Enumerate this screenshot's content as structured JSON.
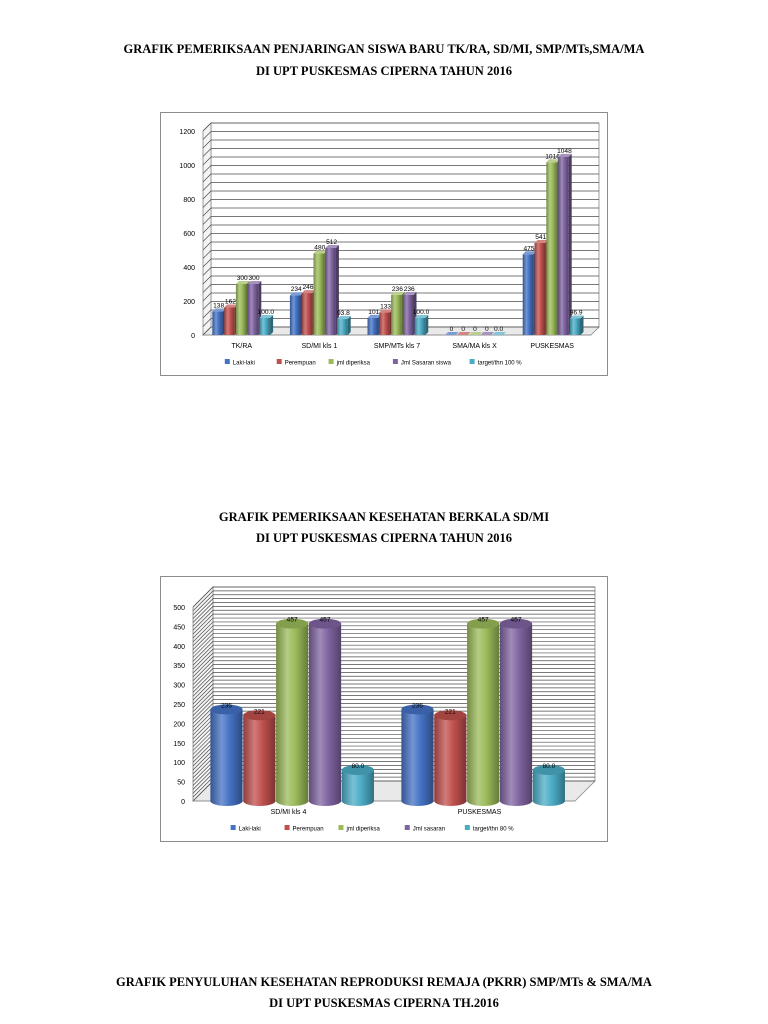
{
  "section1": {
    "title_line1": "GRAFIK PEMERIKSAAN PENJARINGAN SISWA BARU TK/RA, SD/MI, SMP/MTs,SMA/MA",
    "title_line2": "DI UPT PUSKESMAS CIPERNA TAHUN 2016"
  },
  "section2": {
    "title_line1": "GRAFIK PEMERIKSAAN KESEHATAN BERKALA SD/MI",
    "title_line2": "DI UPT PUSKESMAS CIPERNA TAHUN 2016"
  },
  "section3": {
    "title_line1": "GRAFIK PENYULUHAN KESEHATAN REPRODUKSI REMAJA (PKRR) SMP/MTs & SMA/MA",
    "title_line2": "DI UPT PUSKESMAS CIPERNA TH.2016"
  },
  "chart_data": [
    {
      "type": "bar",
      "style": "3d-clustered",
      "categories": [
        "TK/RA",
        "SD/MI kls 1",
        "SMP/MTs kls 7",
        "SMA/MA kls X",
        "PUSKESMAS"
      ],
      "series": [
        {
          "name": "Laki-laki",
          "color": "#4472C4",
          "values": [
            138,
            234,
            101,
            0,
            475
          ],
          "labels": [
            "138",
            "234",
            "101",
            "0",
            "475"
          ]
        },
        {
          "name": "Perempuan",
          "color": "#C0504D",
          "values": [
            162,
            246,
            133,
            0,
            541
          ],
          "labels": [
            "162",
            "246",
            "133",
            "0",
            "541"
          ]
        },
        {
          "name": "jml diperiksa",
          "color": "#9BBB59",
          "values": [
            300,
            480,
            236,
            0,
            1016
          ],
          "labels": [
            "300",
            "480",
            "236",
            "0",
            "1016"
          ]
        },
        {
          "name": "Jml Sasaran siswa",
          "color": "#8064A2",
          "values": [
            300,
            512,
            236,
            0,
            1048
          ],
          "labels": [
            "300",
            "512",
            "236",
            "0",
            "1048"
          ]
        },
        {
          "name": "target/thn 100 %",
          "color": "#4BACC6",
          "values": [
            100.0,
            93.8,
            100.0,
            0.0,
            96.9
          ],
          "labels": [
            "100.0",
            "93.8",
            "100.0",
            "0.0",
            "96.9"
          ]
        }
      ],
      "yticks": [
        0,
        200,
        400,
        600,
        800,
        1000,
        1200
      ],
      "ylim": [
        0,
        1200
      ],
      "grid": true,
      "legend": "bottom"
    },
    {
      "type": "bar",
      "style": "3d-cylinder",
      "categories": [
        "SD/MI kls 4",
        "PUSKESMAS"
      ],
      "series": [
        {
          "name": "Laki-laki",
          "color": "#4472C4",
          "values": [
            236,
            236
          ],
          "labels": [
            "236",
            "236"
          ]
        },
        {
          "name": "Perempuan",
          "color": "#C0504D",
          "values": [
            221,
            221
          ],
          "labels": [
            "221",
            "221"
          ]
        },
        {
          "name": "jml diperiksa",
          "color": "#9BBB59",
          "values": [
            457,
            457
          ],
          "labels": [
            "457",
            "457"
          ]
        },
        {
          "name": "Jml sasaran",
          "color": "#8064A2",
          "values": [
            457,
            457
          ],
          "labels": [
            "457",
            "457"
          ]
        },
        {
          "name": "target/thn 80 %",
          "color": "#4BACC6",
          "values": [
            80.0,
            80.0
          ],
          "labels": [
            "80.0",
            "80.0"
          ]
        }
      ],
      "yticks": [
        0,
        50,
        100,
        150,
        200,
        250,
        300,
        350,
        400,
        450,
        500
      ],
      "ylim": [
        0,
        500
      ],
      "grid": true,
      "legend": "bottom"
    }
  ]
}
